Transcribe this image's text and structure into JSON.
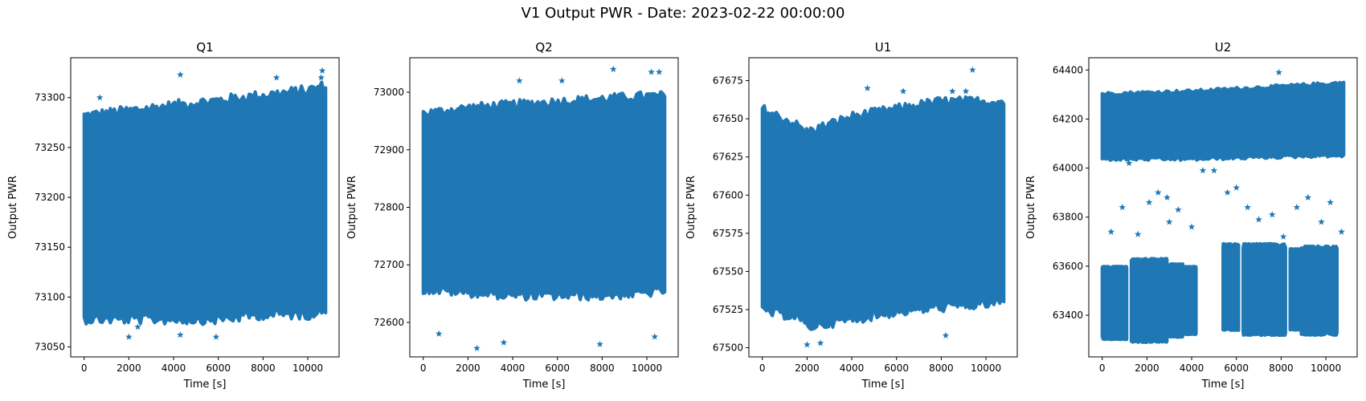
{
  "figure": {
    "title": "V1 Output PWR - Date: 2023-02-22 00:00:00"
  },
  "chart_data": [
    {
      "type": "scatter",
      "title": "Q1",
      "xlabel": "Time [s]",
      "ylabel": "Output PWR",
      "marker": "star",
      "color": "#1f77b4",
      "xlim": [
        -600,
        11400
      ],
      "ylim": [
        73040,
        73340
      ],
      "xticks": [
        0,
        2000,
        4000,
        6000,
        8000,
        10000
      ],
      "yticks": [
        73050,
        73100,
        73150,
        73200,
        73250,
        73300
      ],
      "x_range": [
        0,
        10800
      ],
      "band": {
        "x": [
          0,
          2000,
          4000,
          6000,
          8000,
          10000,
          10800
        ],
        "low": [
          73080,
          73080,
          73080,
          73080,
          73085,
          73085,
          73090
        ],
        "high": [
          73280,
          73285,
          73290,
          73295,
          73300,
          73305,
          73310
        ]
      },
      "outliers": [
        [
          4300,
          73323
        ],
        [
          10650,
          73327
        ],
        [
          2000,
          73060
        ],
        [
          5900,
          73060
        ],
        [
          4300,
          73062
        ],
        [
          2400,
          73070
        ],
        [
          700,
          73300
        ],
        [
          8600,
          73320
        ],
        [
          10600,
          73320
        ]
      ]
    },
    {
      "type": "scatter",
      "title": "Q2",
      "xlabel": "Time [s]",
      "ylabel": "Output PWR",
      "marker": "star",
      "color": "#1f77b4",
      "xlim": [
        -600,
        11400
      ],
      "ylim": [
        72540,
        73060
      ],
      "xticks": [
        0,
        2000,
        4000,
        6000,
        8000,
        10000
      ],
      "yticks": [
        72600,
        72700,
        72800,
        72900,
        73000
      ],
      "x_range": [
        0,
        10800
      ],
      "band": {
        "x": [
          0,
          2000,
          4000,
          6000,
          8000,
          10000,
          10800
        ],
        "low": [
          72660,
          72655,
          72650,
          72650,
          72650,
          72655,
          72660
        ],
        "high": [
          72960,
          72970,
          72975,
          72980,
          72985,
          72990,
          72990
        ]
      },
      "outliers": [
        [
          8500,
          73040
        ],
        [
          10200,
          73035
        ],
        [
          10550,
          73035
        ],
        [
          2400,
          72555
        ],
        [
          700,
          72580
        ],
        [
          3600,
          72565
        ],
        [
          7900,
          72562
        ],
        [
          10350,
          72575
        ],
        [
          4300,
          73020
        ],
        [
          6200,
          73020
        ]
      ]
    },
    {
      "type": "scatter",
      "title": "U1",
      "xlabel": "Time [s]",
      "ylabel": "Output PWR",
      "marker": "star",
      "color": "#1f77b4",
      "xlim": [
        -600,
        11400
      ],
      "ylim": [
        67494,
        67690
      ],
      "xticks": [
        0,
        2000,
        4000,
        6000,
        8000,
        10000
      ],
      "yticks": [
        67500,
        67525,
        67550,
        67575,
        67600,
        67625,
        67650,
        67675
      ],
      "x_range": [
        0,
        10800
      ],
      "band": {
        "x": [
          0,
          1500,
          2000,
          4000,
          6000,
          8000,
          10000,
          10800
        ],
        "low": [
          67525,
          67522,
          67515,
          67520,
          67525,
          67528,
          67530,
          67532
        ],
        "high": [
          67655,
          67645,
          67640,
          67650,
          67655,
          67660,
          67660,
          67660
        ]
      },
      "outliers": [
        [
          9400,
          67682
        ],
        [
          2000,
          67502
        ],
        [
          2600,
          67503
        ],
        [
          8200,
          67508
        ],
        [
          4700,
          67670
        ],
        [
          6300,
          67668
        ],
        [
          8500,
          67668
        ],
        [
          9100,
          67668
        ]
      ]
    },
    {
      "type": "scatter",
      "title": "U2",
      "xlabel": "Time [s]",
      "ylabel": "Output PWR",
      "marker": "star",
      "color": "#1f77b4",
      "xlim": [
        -600,
        11400
      ],
      "ylim": [
        63230,
        64450
      ],
      "xticks": [
        0,
        2000,
        4000,
        6000,
        8000,
        10000
      ],
      "yticks": [
        63400,
        63600,
        63800,
        64000,
        64200,
        64400
      ],
      "upper_band": {
        "x": [
          0,
          2000,
          4000,
          6000,
          8000,
          10000,
          10800
        ],
        "low": [
          64040,
          64040,
          64040,
          64045,
          64050,
          64055,
          64055
        ],
        "high": [
          64300,
          64305,
          64310,
          64320,
          64330,
          64340,
          64345
        ]
      },
      "lower_clusters": [
        {
          "x": [
            0,
            1100
          ],
          "low": 63310,
          "high": 63590
        },
        {
          "x": [
            1300,
            2900
          ],
          "low": 63300,
          "high": 63620
        },
        {
          "x": [
            3000,
            3600
          ],
          "low": 63320,
          "high": 63600
        },
        {
          "x": [
            3700,
            4200
          ],
          "low": 63330,
          "high": 63590
        },
        {
          "x": [
            5400,
            6100
          ],
          "low": 63350,
          "high": 63680
        },
        {
          "x": [
            6300,
            8200
          ],
          "low": 63330,
          "high": 63680
        },
        {
          "x": [
            8400,
            8800
          ],
          "low": 63350,
          "high": 63660
        },
        {
          "x": [
            8900,
            10500
          ],
          "low": 63330,
          "high": 63670
        }
      ],
      "outliers": [
        [
          400,
          63740
        ],
        [
          900,
          63840
        ],
        [
          1600,
          63730
        ],
        [
          2100,
          63860
        ],
        [
          2500,
          63900
        ],
        [
          2900,
          63880
        ],
        [
          3400,
          63830
        ],
        [
          4000,
          63760
        ],
        [
          5000,
          63990
        ],
        [
          5600,
          63900
        ],
        [
          6000,
          63920
        ],
        [
          6500,
          63840
        ],
        [
          7000,
          63790
        ],
        [
          7600,
          63810
        ],
        [
          8100,
          63720
        ],
        [
          8700,
          63840
        ],
        [
          9200,
          63880
        ],
        [
          9800,
          63780
        ],
        [
          10200,
          63860
        ],
        [
          7900,
          64390
        ],
        [
          1200,
          64020
        ],
        [
          3000,
          63780
        ],
        [
          4500,
          63990
        ],
        [
          10700,
          63740
        ]
      ]
    }
  ]
}
